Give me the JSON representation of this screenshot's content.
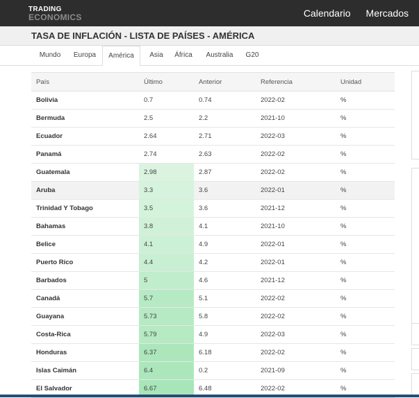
{
  "header": {
    "brand_line1": "TRADING",
    "brand_line2": "ECONOMICS",
    "nav": [
      "Calendario",
      "Mercados"
    ]
  },
  "page": {
    "title": "TASA DE INFLACIÓN - LISTA DE PAÍSES - AMÉRICA"
  },
  "tabs": [
    {
      "label": "Mundo",
      "active": false
    },
    {
      "label": "Europa",
      "active": false
    },
    {
      "label": "América",
      "active": true
    },
    {
      "label": "Asia",
      "active": false
    },
    {
      "label": "África",
      "active": false
    },
    {
      "label": "Australia",
      "active": false
    },
    {
      "label": "G20",
      "active": false
    }
  ],
  "table": {
    "columns": [
      "País",
      "Último",
      "Anterior",
      "Referencia",
      "Unidad"
    ],
    "rows": [
      [
        "Bolivia",
        "0.7",
        "0.74",
        "2022-02",
        "%"
      ],
      [
        "Bermuda",
        "2.5",
        "2.2",
        "2021-10",
        "%"
      ],
      [
        "Ecuador",
        "2.64",
        "2.71",
        "2022-03",
        "%"
      ],
      [
        "Panamá",
        "2.74",
        "2.63",
        "2022-02",
        "%"
      ],
      [
        "Guatemala",
        "2.98",
        "2.87",
        "2022-02",
        "%"
      ],
      [
        "Aruba",
        "3.3",
        "3.6",
        "2022-01",
        "%"
      ],
      [
        "Trinidad Y Tobago",
        "3.5",
        "3.6",
        "2021-12",
        "%"
      ],
      [
        "Bahamas",
        "3.8",
        "4.1",
        "2021-10",
        "%"
      ],
      [
        "Belice",
        "4.1",
        "4.9",
        "2022-01",
        "%"
      ],
      [
        "Puerto Rico",
        "4.4",
        "4.2",
        "2022-01",
        "%"
      ],
      [
        "Barbados",
        "5",
        "4.6",
        "2021-12",
        "%"
      ],
      [
        "Canadá",
        "5.7",
        "5.1",
        "2022-02",
        "%"
      ],
      [
        "Guayana",
        "5.73",
        "5.8",
        "2022-02",
        "%"
      ],
      [
        "Costa-Rica",
        "5.79",
        "4.9",
        "2022-03",
        "%"
      ],
      [
        "Honduras",
        "6.37",
        "6.18",
        "2022-02",
        "%"
      ],
      [
        "Islas Caimán",
        "6.4",
        "0.2",
        "2021-09",
        "%"
      ],
      [
        "El Salvador",
        "6.67",
        "6.48",
        "2022-02",
        "%"
      ]
    ],
    "highlighted_row": 5,
    "heat_color_low": "#f1fbf2",
    "heat_color_high": "#a8e6b9"
  }
}
